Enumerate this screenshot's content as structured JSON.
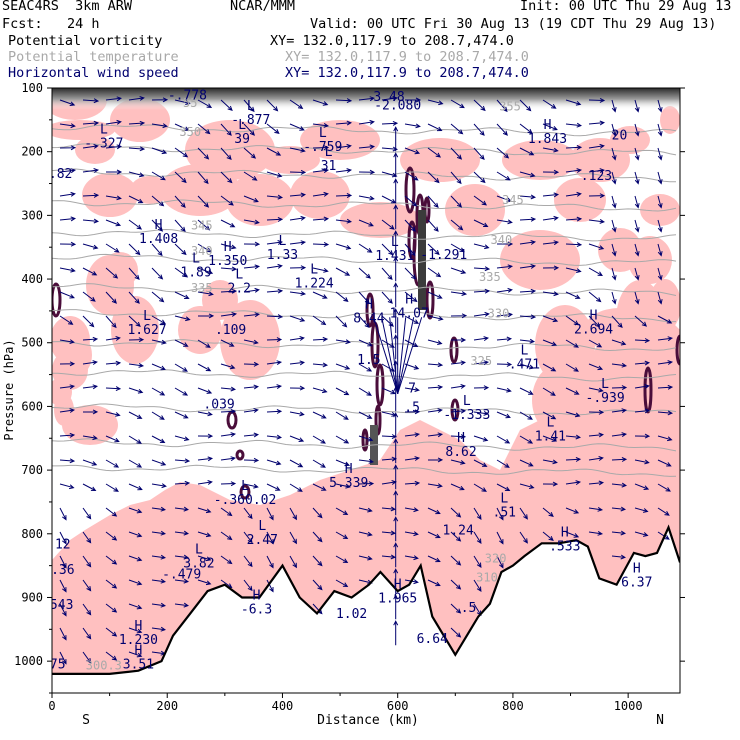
{
  "header": {
    "left1": "SEAC4RS  3km ARW",
    "left2": "Fcst:   24 h",
    "center1": "NCAR/MMM",
    "init": "Init: 00 UTC Thu 29 Aug 13",
    "valid": "Valid: 00 UTC Fri 30 Aug 13 (19 CDT Thu 29 Aug 13)"
  },
  "fields": [
    {
      "name": "Potential vorticity",
      "xy": "XY= 132.0,117.9 to 208.7,474.0",
      "color": "#000000"
    },
    {
      "name": "Potential temperature",
      "xy": "XY= 132.0,117.9 to 208.7,474.0",
      "color": "#a9a9a9"
    },
    {
      "name": "Horizontal wind speed",
      "xy": "XY= 132.0,117.9 to 208.7,474.0",
      "color": "#00006e"
    }
  ],
  "chart_data": {
    "type": "cross-section",
    "xlabel": "Distance (km)",
    "ylabel": "Pressure (hPa)",
    "xlim": [
      0,
      1090
    ],
    "ylim": [
      1050,
      100
    ],
    "x_ticks": [
      0,
      200,
      400,
      600,
      800,
      1000
    ],
    "y_ticks": [
      100,
      200,
      300,
      400,
      500,
      600,
      700,
      800,
      900,
      1000
    ],
    "end_labels": {
      "left": "S",
      "right": "N"
    },
    "colors": {
      "pv_fill": "#ffc0c0",
      "pv_high": "#4a0d3a",
      "theta": "#a9a9a9",
      "wind": "#00006e",
      "terrain": "#000000"
    },
    "theta_labels": [
      {
        "text": "350",
        "x": 240,
        "p": 175
      },
      {
        "text": "345",
        "x": 800,
        "p": 282
      },
      {
        "text": "345",
        "x": 260,
        "p": 322
      },
      {
        "text": "340",
        "x": 780,
        "p": 345
      },
      {
        "text": "340",
        "x": 260,
        "p": 362
      },
      {
        "text": "335",
        "x": 760,
        "p": 403
      },
      {
        "text": "335",
        "x": 260,
        "p": 420
      },
      {
        "text": "330",
        "x": 775,
        "p": 460
      },
      {
        "text": "325",
        "x": 745,
        "p": 535
      },
      {
        "text": "55",
        "x": 240,
        "p": 130
      },
      {
        "text": "355",
        "x": 795,
        "p": 135
      },
      {
        "text": "320",
        "x": 770,
        "p": 845
      },
      {
        "text": "310",
        "x": 755,
        "p": 875
      },
      {
        "text": "300.3",
        "x": 90,
        "p": 1013
      }
    ],
    "pv_labels": [
      {
        "hl": "",
        "value": "-.778",
        "x": 235,
        "p": 115
      },
      {
        "hl": "L",
        "value": "3.48",
        "x": 585,
        "p": 117
      },
      {
        "hl": "",
        "value": "-2.080",
        "x": 600,
        "p": 131
      },
      {
        "hl": "L",
        "value": "-.877",
        "x": 345,
        "p": 153
      },
      {
        "hl": "L",
        "value": "-.327",
        "x": 90,
        "p": 190
      },
      {
        "hl": "L",
        "value": "39",
        "x": 330,
        "p": 183
      },
      {
        "hl": "L",
        "value": "-.759",
        "x": 470,
        "p": 196
      },
      {
        "hl": "H",
        "value": "1.843",
        "x": 860,
        "p": 183
      },
      {
        "hl": "",
        "value": ".123",
        "x": 945,
        "p": 241
      },
      {
        "hl": "",
        "value": "20",
        "x": 985,
        "p": 178
      },
      {
        "hl": "",
        "value": ".82",
        "x": 15,
        "p": 238
      },
      {
        "hl": "L",
        "value": "31",
        "x": 480,
        "p": 226
      },
      {
        "hl": "H",
        "value": "1.408",
        "x": 185,
        "p": 340
      },
      {
        "hl": "H",
        "value": "1.350",
        "x": 305,
        "p": 375
      },
      {
        "hl": "L",
        "value": "1.89",
        "x": 250,
        "p": 393
      },
      {
        "hl": "L",
        "value": "2.2",
        "x": 325,
        "p": 418
      },
      {
        "hl": "L",
        "value": "1.33",
        "x": 400,
        "p": 365
      },
      {
        "hl": "L",
        "value": "1.224",
        "x": 455,
        "p": 410
      },
      {
        "hl": "L",
        "value": "1.431",
        "x": 595,
        "p": 367
      },
      {
        "hl": "",
        "value": "-1.291",
        "x": 680,
        "p": 365
      },
      {
        "hl": "H",
        "value": "8.44",
        "x": 550,
        "p": 465
      },
      {
        "hl": "H",
        "value": "14.07",
        "x": 620,
        "p": 457
      },
      {
        "hl": "L",
        "value": "1.627",
        "x": 165,
        "p": 483
      },
      {
        "hl": "",
        "value": ".109",
        "x": 310,
        "p": 483
      },
      {
        "hl": "",
        "value": "1.5",
        "x": 550,
        "p": 530
      },
      {
        "hl": "H",
        "value": "2.694",
        "x": 940,
        "p": 482
      },
      {
        "hl": "L",
        "value": ".471",
        "x": 820,
        "p": 537
      },
      {
        "hl": "",
        "value": "7",
        "x": 625,
        "p": 575
      },
      {
        "hl": "L",
        "value": "-.939",
        "x": 960,
        "p": 590
      },
      {
        "hl": "",
        "value": ".5",
        "x": 625,
        "p": 605
      },
      {
        "hl": "L",
        "value": "-1.333",
        "x": 720,
        "p": 617
      },
      {
        "hl": "L",
        "value": "1.41",
        "x": 865,
        "p": 650
      },
      {
        "hl": "",
        "value": ".039",
        "x": 290,
        "p": 600
      },
      {
        "hl": "H",
        "value": "8.62",
        "x": 710,
        "p": 675
      },
      {
        "hl": "H",
        "value": "5.339",
        "x": 515,
        "p": 723
      },
      {
        "hl": "L",
        "value": "-.360.02",
        "x": 335,
        "p": 750
      },
      {
        "hl": "L",
        "value": ".51",
        "x": 785,
        "p": 770
      },
      {
        "hl": "",
        "value": "1.24",
        "x": 705,
        "p": 798
      },
      {
        "hl": "L",
        "value": "2.47",
        "x": 365,
        "p": 813
      },
      {
        "hl": "H",
        "value": ".533",
        "x": 890,
        "p": 823
      },
      {
        "hl": "",
        "value": ".12",
        "x": 12,
        "p": 820
      },
      {
        "hl": "L",
        "value": "3.82",
        "x": 255,
        "p": 850
      },
      {
        "hl": "",
        "value": "-.479",
        "x": 225,
        "p": 867
      },
      {
        "hl": "",
        "value": "6.36",
        "x": 12,
        "p": 860
      },
      {
        "hl": "H",
        "value": "6.37",
        "x": 1015,
        "p": 880
      },
      {
        "hl": "H",
        "value": "1.965",
        "x": 600,
        "p": 905
      },
      {
        "hl": "H",
        "value": "-6.3",
        "x": 355,
        "p": 922
      },
      {
        "hl": "",
        "value": "1.02",
        "x": 520,
        "p": 929
      },
      {
        "hl": "",
        "value": ".543",
        "x": 10,
        "p": 915
      },
      {
        "hl": "",
        "value": ".5",
        "x": 723,
        "p": 920
      },
      {
        "hl": "H",
        "value": "1.230",
        "x": 150,
        "p": 970
      },
      {
        "hl": "",
        "value": "6.64",
        "x": 660,
        "p": 968
      },
      {
        "hl": "H",
        "value": "3.51",
        "x": 150,
        "p": 1008
      },
      {
        "hl": "",
        "value": "75",
        "x": 10,
        "p": 1008
      }
    ],
    "terrain_profile": [
      [
        0,
        1020
      ],
      [
        100,
        1020
      ],
      [
        150,
        1015
      ],
      [
        190,
        1000
      ],
      [
        210,
        960
      ],
      [
        240,
        925
      ],
      [
        270,
        890
      ],
      [
        300,
        880
      ],
      [
        330,
        900
      ],
      [
        360,
        900
      ],
      [
        400,
        850
      ],
      [
        430,
        900
      ],
      [
        460,
        925
      ],
      [
        490,
        890
      ],
      [
        520,
        900
      ],
      [
        550,
        880
      ],
      [
        570,
        860
      ],
      [
        600,
        890
      ],
      [
        620,
        880
      ],
      [
        640,
        850
      ],
      [
        660,
        930
      ],
      [
        680,
        960
      ],
      [
        700,
        990
      ],
      [
        720,
        960
      ],
      [
        740,
        930
      ],
      [
        760,
        910
      ],
      [
        780,
        860
      ],
      [
        800,
        850
      ],
      [
        820,
        835
      ],
      [
        850,
        815
      ],
      [
        880,
        815
      ],
      [
        910,
        810
      ],
      [
        930,
        820
      ],
      [
        950,
        870
      ],
      [
        980,
        880
      ],
      [
        1010,
        830
      ],
      [
        1030,
        835
      ],
      [
        1050,
        830
      ],
      [
        1070,
        790
      ],
      [
        1090,
        845
      ]
    ]
  }
}
